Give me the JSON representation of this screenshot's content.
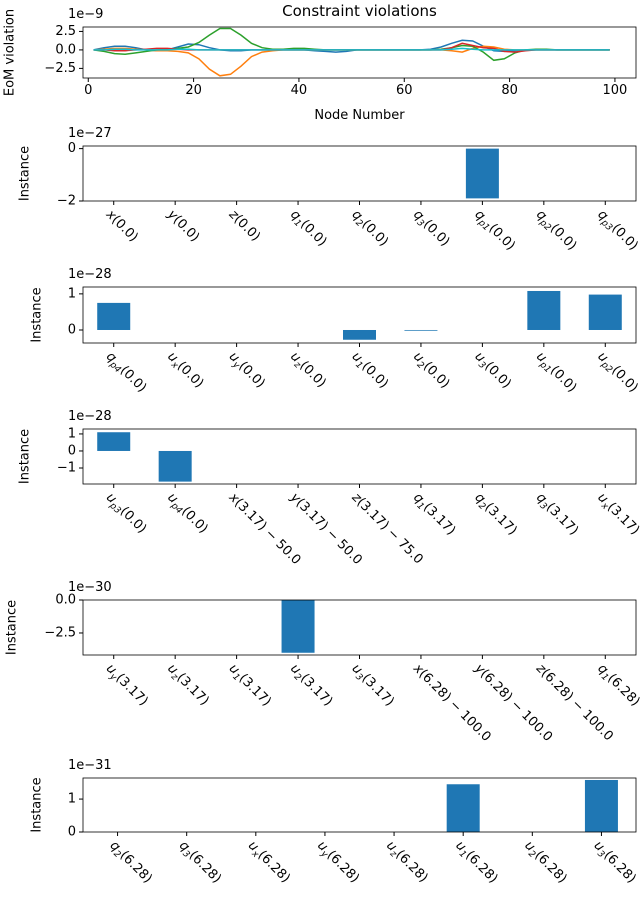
{
  "chart_data": [
    {
      "type": "line",
      "title": "Constraint violations",
      "xlabel": "Node Number",
      "ylabel": "EoM violation",
      "offset_text": "1e−9",
      "x": [
        1,
        3,
        5,
        7,
        9,
        11,
        13,
        15,
        17,
        19,
        21,
        23,
        25,
        27,
        29,
        31,
        33,
        35,
        37,
        39,
        41,
        43,
        45,
        47,
        49,
        51,
        53,
        55,
        57,
        59,
        61,
        63,
        65,
        67,
        69,
        71,
        73,
        75,
        77,
        79,
        81,
        83,
        85,
        87,
        89,
        91,
        93,
        95,
        97,
        99
      ],
      "series": [
        {
          "color": "#1f77b4",
          "values": [
            0,
            0.3,
            0.5,
            0.5,
            0.3,
            0,
            -0.1,
            0,
            0.4,
            0.8,
            0.7,
            0.3,
            0,
            -0.1,
            -0.1,
            0,
            0,
            0,
            0,
            0,
            0,
            -0.1,
            -0.2,
            -0.3,
            -0.2,
            0,
            0,
            0,
            0,
            0,
            0,
            0,
            0.1,
            0.4,
            0.9,
            1.3,
            1.2,
            0.5,
            -0.1,
            -0.2,
            -0.1,
            0,
            0,
            0,
            0,
            0,
            0,
            0,
            0,
            0
          ]
        },
        {
          "color": "#ff7f0e",
          "values": [
            0,
            0.1,
            0.2,
            0.2,
            0.1,
            0,
            -0.1,
            -0.1,
            -0.2,
            -0.4,
            -1.2,
            -2.6,
            -3.5,
            -3.3,
            -2.2,
            -0.9,
            -0.3,
            -0.1,
            0,
            0,
            0,
            0,
            0,
            0,
            0,
            0,
            0,
            0,
            0,
            0,
            0,
            0,
            0,
            0,
            -0.1,
            -0.3,
            0.2,
            0.5,
            0.4,
            0.1,
            0,
            0,
            0,
            0,
            0,
            0,
            0,
            0,
            0,
            0
          ]
        },
        {
          "color": "#2ca02c",
          "values": [
            0,
            -0.2,
            -0.5,
            -0.6,
            -0.4,
            -0.2,
            0,
            0.1,
            0.2,
            0.4,
            1.0,
            2.0,
            2.9,
            2.9,
            2.0,
            0.9,
            0.3,
            0.1,
            0.1,
            0.2,
            0.2,
            0.1,
            0,
            0,
            0,
            0,
            0,
            0,
            0,
            0,
            0,
            0,
            0,
            0.1,
            0.3,
            0.6,
            0.5,
            -0.3,
            -1.4,
            -1.2,
            -0.4,
            0,
            0.1,
            0.1,
            0,
            0,
            0,
            0,
            0,
            0
          ]
        },
        {
          "color": "#d62728",
          "values": [
            0,
            0,
            -0.1,
            -0.1,
            0,
            0.1,
            0.2,
            0.2,
            0.1,
            0,
            0,
            0,
            0,
            0,
            0,
            0,
            0,
            0,
            0,
            0,
            0,
            0,
            0,
            0,
            0,
            0,
            0,
            0,
            0,
            0,
            0,
            0,
            0,
            0,
            0.3,
            0.9,
            0.6,
            0.3,
            0.2,
            -0.2,
            -0.3,
            -0.1,
            0,
            0,
            0,
            0,
            0,
            0,
            0,
            0
          ]
        },
        {
          "color": "#17becf",
          "values": [
            0,
            0,
            0.1,
            0.1,
            0,
            0,
            0,
            0,
            0.1,
            0.1,
            0,
            0,
            0,
            0,
            0,
            0,
            0,
            0,
            0,
            0,
            0,
            0,
            0,
            0,
            0,
            0,
            0,
            0,
            0,
            0,
            0,
            0,
            0,
            0,
            0.1,
            0.2,
            0.1,
            0,
            0,
            0,
            0,
            0,
            0,
            0,
            0,
            0,
            0,
            0,
            0,
            0
          ]
        }
      ],
      "xlim": [
        -1,
        104
      ],
      "ylim": [
        -3.8,
        3.1
      ],
      "xticks": [
        0,
        20,
        40,
        60,
        80,
        100
      ],
      "yticks": [
        {
          "value": -2.5,
          "label": "−2.5"
        },
        {
          "value": 0,
          "label": "0.0"
        },
        2.5
      ]
    },
    {
      "type": "bar",
      "ylabel": "Instance",
      "offset_text": "1e−27",
      "color": "#1f77b4",
      "categories": [
        {
          "main": "x",
          "rest": "(0.0)"
        },
        {
          "main": "y",
          "rest": "(0.0)"
        },
        {
          "main": "z",
          "rest": "(0.0)"
        },
        {
          "main": "q",
          "sub": "1",
          "rest": "(0.0)"
        },
        {
          "main": "q",
          "sub": "2",
          "rest": "(0.0)"
        },
        {
          "main": "q",
          "sub": "3",
          "rest": "(0.0)"
        },
        {
          "main": "q",
          "sub": "p1",
          "rest": "(0.0)"
        },
        {
          "main": "q",
          "sub": "p2",
          "rest": "(0.0)"
        },
        {
          "main": "q",
          "sub": "p3",
          "rest": "(0.0)"
        }
      ],
      "values": [
        0,
        0,
        0,
        0,
        0,
        0,
        -1.9,
        0,
        0
      ],
      "ylim": [
        -2.0,
        0.1
      ],
      "yticks": [
        {
          "value": -2,
          "label": "−2"
        },
        0
      ]
    },
    {
      "type": "bar",
      "ylabel": "Instance",
      "offset_text": "1e−28",
      "color": "#1f77b4",
      "categories": [
        {
          "main": "q",
          "sub": "p4",
          "rest": "(0.0)"
        },
        {
          "main": "u",
          "sub": "x",
          "rest": "(0.0)"
        },
        {
          "main": "u",
          "sub": "y",
          "rest": "(0.0)"
        },
        {
          "main": "u",
          "sub": "z",
          "rest": "(0.0)"
        },
        {
          "main": "u",
          "sub": "1",
          "rest": "(0.0)"
        },
        {
          "main": "u",
          "sub": "2",
          "rest": "(0.0)"
        },
        {
          "main": "u",
          "sub": "3",
          "rest": "(0.0)"
        },
        {
          "main": "u",
          "sub": "p1",
          "rest": "(0.0)"
        },
        {
          "main": "u",
          "sub": "p2",
          "rest": "(0.0)"
        }
      ],
      "values": [
        0.75,
        0,
        0,
        0,
        -0.27,
        -0.02,
        0,
        1.08,
        0.98
      ],
      "ylim": [
        -0.36,
        1.19
      ],
      "yticks": [
        0,
        1
      ]
    },
    {
      "type": "bar",
      "ylabel": "Instance",
      "offset_text": "1e−28",
      "color": "#1f77b4",
      "categories": [
        {
          "main": "u",
          "sub": "p3",
          "rest": "(0.0)"
        },
        {
          "main": "u",
          "sub": "p4",
          "rest": "(0.0)"
        },
        {
          "main": "x",
          "rest": "(3.17) − 50.0"
        },
        {
          "main": "y",
          "rest": "(3.17) − 50.0"
        },
        {
          "main": "z",
          "rest": "(3.17) − 75.0"
        },
        {
          "main": "q",
          "sub": "1",
          "rest": "(3.17)"
        },
        {
          "main": "q",
          "sub": "2",
          "rest": "(3.17)"
        },
        {
          "main": "q",
          "sub": "3",
          "rest": "(3.17)"
        },
        {
          "main": "u",
          "sub": "x",
          "rest": "(3.17)"
        }
      ],
      "values": [
        1.1,
        -1.8,
        0,
        0,
        0,
        0,
        0,
        0,
        0
      ],
      "ylim": [
        -1.94,
        1.29
      ],
      "yticks": [
        {
          "value": -1,
          "label": "−1"
        },
        0,
        1
      ]
    },
    {
      "type": "bar",
      "ylabel": "Instance",
      "offset_text": "1e−30",
      "color": "#1f77b4",
      "categories": [
        {
          "main": "u",
          "sub": "y",
          "rest": "(3.17)"
        },
        {
          "main": "u",
          "sub": "z",
          "rest": "(3.17)"
        },
        {
          "main": "u",
          "sub": "1",
          "rest": "(3.17)"
        },
        {
          "main": "u",
          "sub": "2",
          "rest": "(3.17)"
        },
        {
          "main": "u",
          "sub": "3",
          "rest": "(3.17)"
        },
        {
          "main": "x",
          "rest": "(6.28) − 100.0"
        },
        {
          "main": "y",
          "rest": "(6.28) − 100.0"
        },
        {
          "main": "z",
          "rest": "(6.28) − 100.0"
        },
        {
          "main": "q",
          "sub": "1",
          "rest": "(6.28)"
        }
      ],
      "values": [
        0,
        0,
        0,
        -4.0,
        0,
        0,
        0,
        0,
        0
      ],
      "ylim": [
        -4.17,
        0
      ],
      "yticks": [
        {
          "value": -2.5,
          "label": "−2.5"
        },
        {
          "value": 0,
          "label": "0.0"
        }
      ]
    },
    {
      "type": "bar",
      "ylabel": "Instance",
      "offset_text": "1e−31",
      "color": "#1f77b4",
      "categories": [
        {
          "main": "q",
          "sub": "2",
          "rest": "(6.28)"
        },
        {
          "main": "q",
          "sub": "3",
          "rest": "(6.28)"
        },
        {
          "main": "u",
          "sub": "x",
          "rest": "(6.28)"
        },
        {
          "main": "u",
          "sub": "y",
          "rest": "(6.28)"
        },
        {
          "main": "u",
          "sub": "z",
          "rest": "(6.28)"
        },
        {
          "main": "u",
          "sub": "1",
          "rest": "(6.28)"
        },
        {
          "main": "u",
          "sub": "2",
          "rest": "(6.28)"
        },
        {
          "main": "u",
          "sub": "3",
          "rest": "(6.28)"
        }
      ],
      "values": [
        0,
        0,
        0,
        0,
        0,
        1.45,
        0,
        1.58
      ],
      "ylim": [
        0,
        1.64
      ],
      "yticks": [
        0,
        1
      ]
    }
  ]
}
